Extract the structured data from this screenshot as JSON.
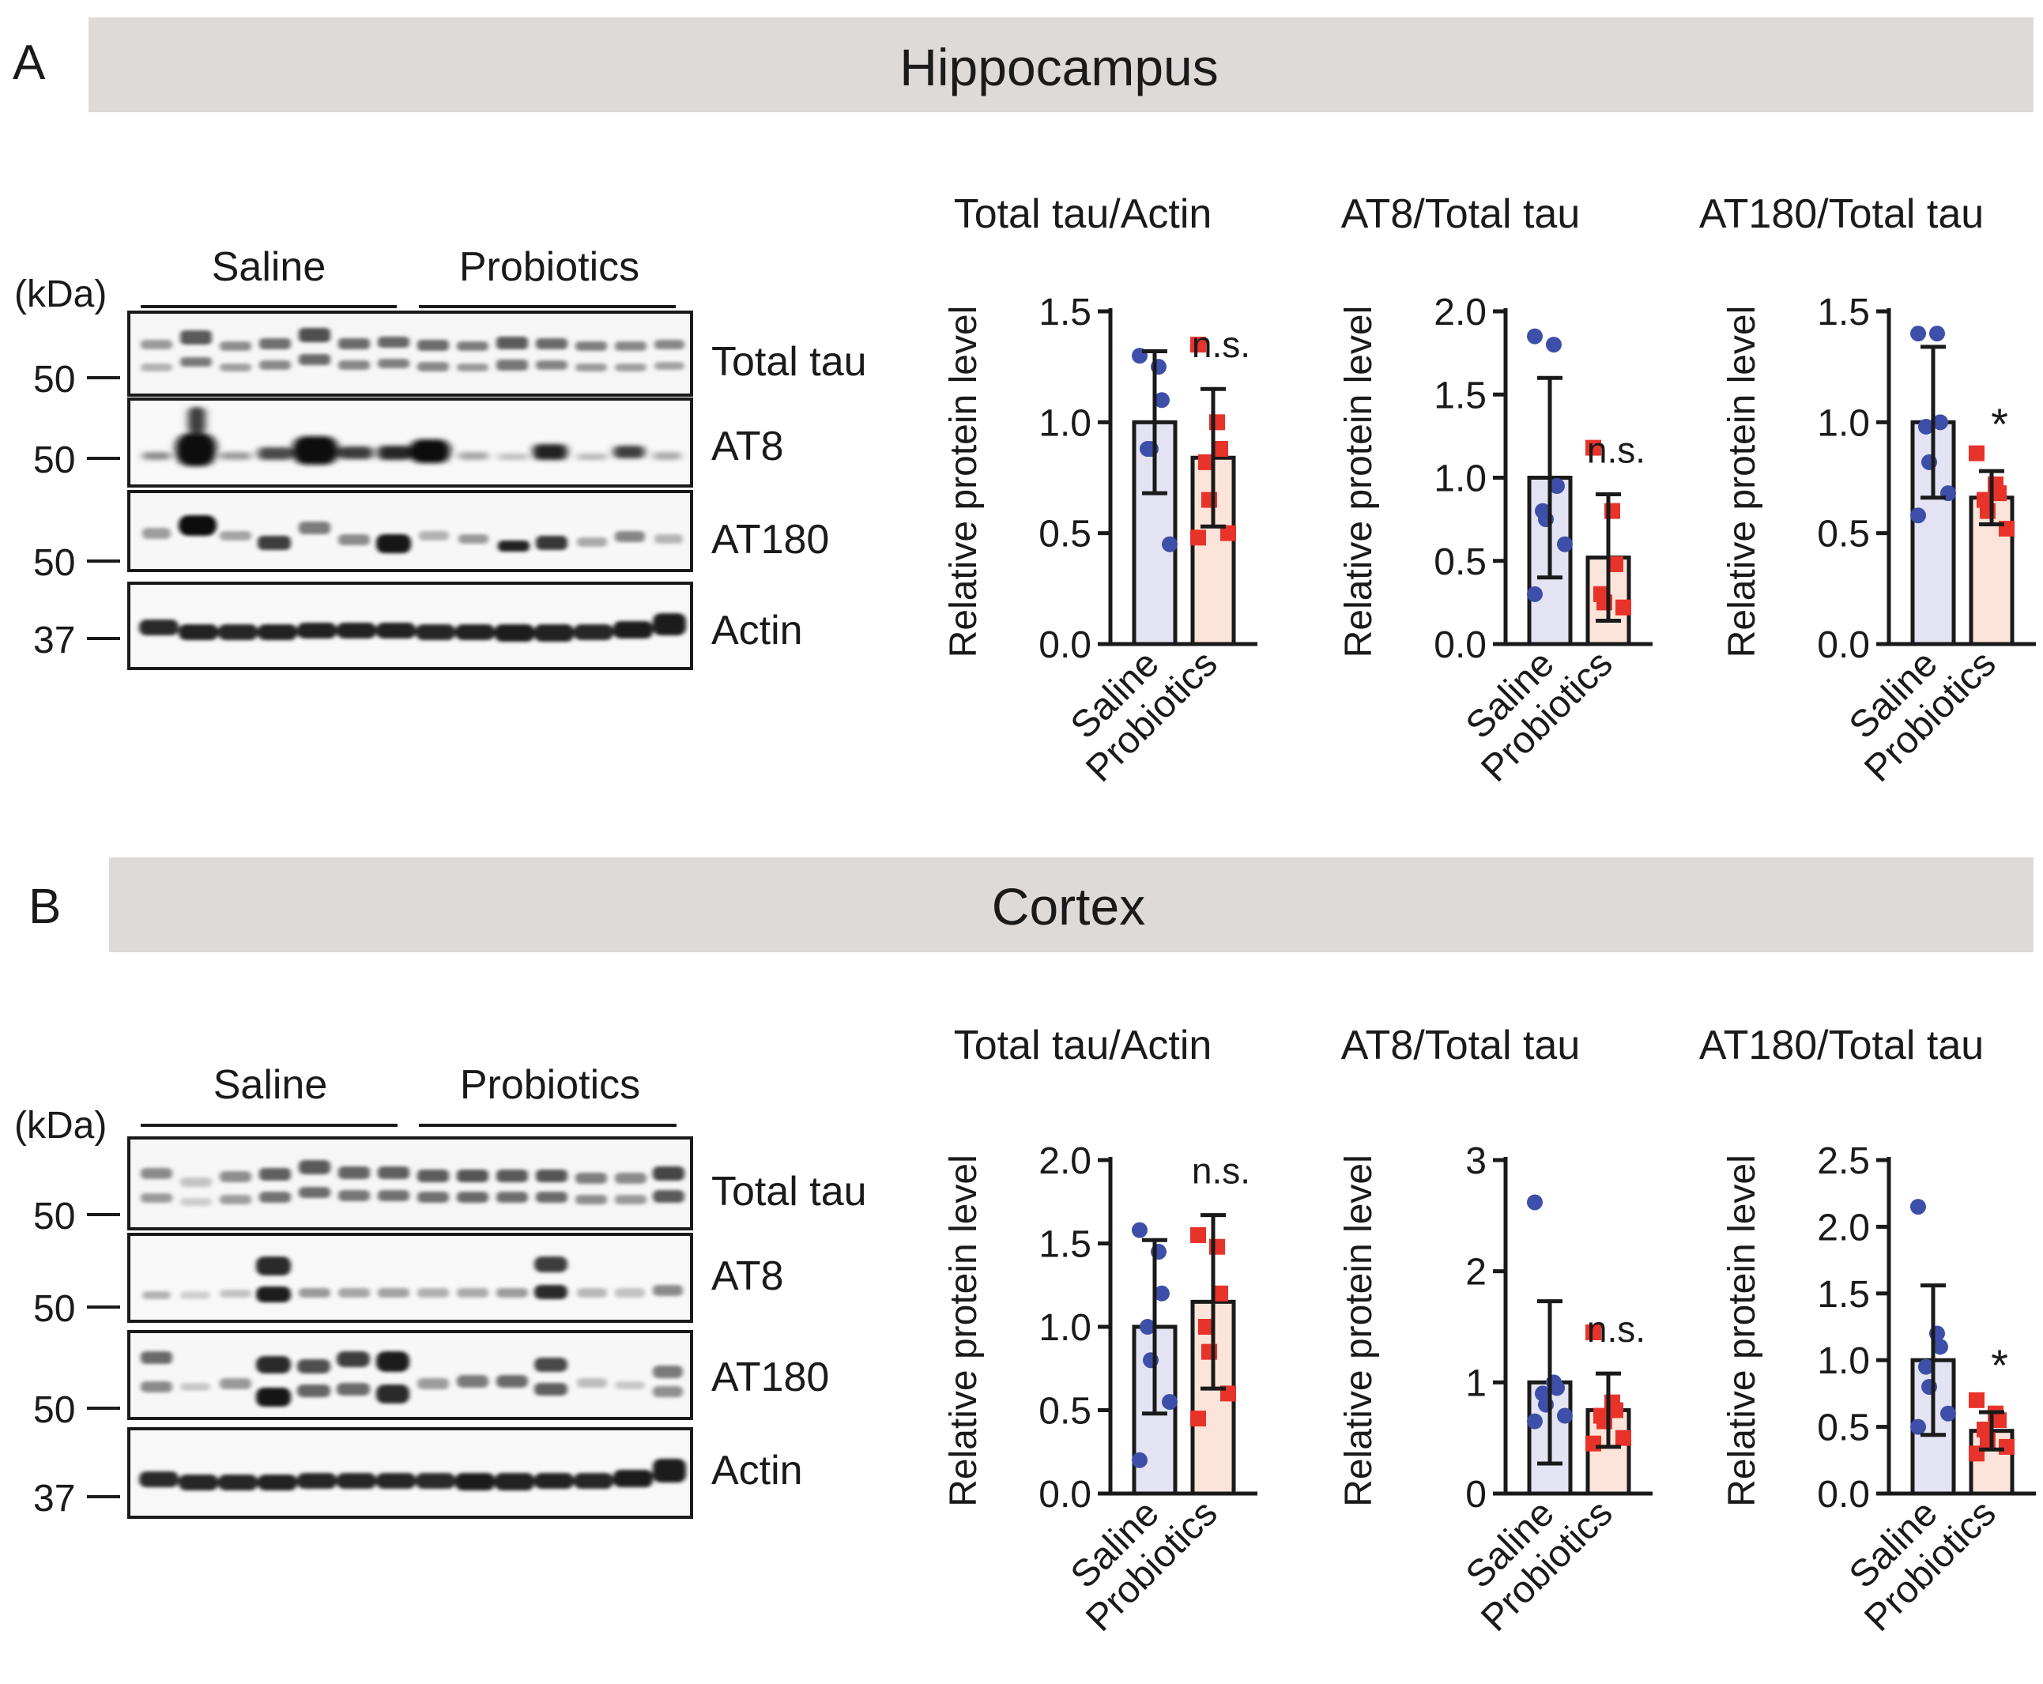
{
  "panels": [
    {
      "letter": "A",
      "region": "Hippocampus",
      "blot": {
        "groups": [
          "Saline",
          "Probiotics"
        ],
        "kda_label": "(kDa)",
        "rows": [
          {
            "name": "Total tau",
            "marker": "50"
          },
          {
            "name": "AT8",
            "marker": "50"
          },
          {
            "name": "AT180",
            "marker": "50"
          },
          {
            "name": "Actin",
            "marker": "37"
          }
        ]
      }
    },
    {
      "letter": "B",
      "region": "Cortex",
      "blot": {
        "groups": [
          "Saline",
          "Probiotics"
        ],
        "kda_label": "(kDa)",
        "rows": [
          {
            "name": "Total tau",
            "marker": "50"
          },
          {
            "name": "AT8",
            "marker": "50"
          },
          {
            "name": "AT180",
            "marker": "50"
          },
          {
            "name": "Actin",
            "marker": "37"
          }
        ]
      }
    }
  ],
  "colors": {
    "saline_point": "#3d4fa8",
    "probiotics_point": "#e8332a",
    "saline_bar": "#e4e3f3",
    "probiotics_bar": "#fde4da",
    "header_band": "#dedad7"
  },
  "chart_data": [
    {
      "type": "bar",
      "title": "Total tau/Actin",
      "ylabel": "Relative protein level",
      "categories": [
        "Saline",
        "Probiotics"
      ],
      "values": [
        1.0,
        0.84
      ],
      "errors": [
        0.32,
        0.31
      ],
      "ylim": [
        0,
        1.5
      ],
      "yticks": [
        "0.0",
        "0.5",
        "1.0",
        "1.5"
      ],
      "significance": "n.s.",
      "points": [
        [
          1.3,
          1.25,
          1.1,
          0.88,
          0.88,
          0.45
        ],
        [
          1.35,
          1.0,
          0.88,
          0.82,
          0.65,
          0.5,
          0.48
        ]
      ]
    },
    {
      "type": "bar",
      "title": "AT8/Total tau",
      "ylabel": "Relative protein level",
      "categories": [
        "Saline",
        "Probiotics"
      ],
      "values": [
        1.0,
        0.52
      ],
      "errors": [
        0.6,
        0.38
      ],
      "ylim": [
        0,
        2.0
      ],
      "yticks": [
        "0.0",
        "0.5",
        "1.0",
        "1.5",
        "2.0"
      ],
      "significance": "n.s.",
      "points": [
        [
          1.85,
          1.8,
          0.95,
          0.8,
          0.75,
          0.6,
          0.3
        ],
        [
          1.18,
          0.8,
          0.48,
          0.3,
          0.25,
          0.22
        ]
      ]
    },
    {
      "type": "bar",
      "title": "AT180/Total tau",
      "ylabel": "Relative protein level",
      "categories": [
        "Saline",
        "Probiotics"
      ],
      "values": [
        1.0,
        0.66
      ],
      "errors": [
        0.34,
        0.12
      ],
      "ylim": [
        0,
        1.5
      ],
      "yticks": [
        "0.0",
        "0.5",
        "1.0",
        "1.5"
      ],
      "significance": "*",
      "points": [
        [
          1.4,
          1.4,
          1.0,
          0.98,
          0.82,
          0.68,
          0.58
        ],
        [
          0.86,
          0.72,
          0.68,
          0.65,
          0.6,
          0.52
        ]
      ]
    },
    {
      "type": "bar",
      "title": "Total tau/Actin",
      "ylabel": "Relative protein level",
      "categories": [
        "Saline",
        "Probiotics"
      ],
      "values": [
        1.0,
        1.15
      ],
      "errors": [
        0.52,
        0.52
      ],
      "ylim": [
        0,
        2.0
      ],
      "yticks": [
        "0.0",
        "0.5",
        "1.0",
        "1.5",
        "2.0"
      ],
      "significance": "n.s.",
      "points": [
        [
          1.58,
          1.45,
          1.2,
          1.0,
          0.8,
          0.55,
          0.2
        ],
        [
          1.55,
          1.48,
          1.2,
          1.0,
          0.85,
          0.6,
          0.45
        ]
      ]
    },
    {
      "type": "bar",
      "title": "AT8/Total tau",
      "ylabel": "Relative protein level",
      "categories": [
        "Saline",
        "Probiotics"
      ],
      "values": [
        1.0,
        0.75
      ],
      "errors": [
        0.73,
        0.33
      ],
      "ylim": [
        0,
        3
      ],
      "yticks": [
        "0",
        "1",
        "2",
        "3"
      ],
      "significance": "n.s.",
      "points": [
        [
          2.62,
          1.0,
          0.95,
          0.9,
          0.8,
          0.7,
          0.65
        ],
        [
          1.45,
          0.82,
          0.75,
          0.7,
          0.65,
          0.5,
          0.45
        ]
      ]
    },
    {
      "type": "bar",
      "title": "AT180/Total tau",
      "ylabel": "Relative protein level",
      "categories": [
        "Saline",
        "Probiotics"
      ],
      "values": [
        1.0,
        0.47
      ],
      "errors": [
        0.56,
        0.14
      ],
      "ylim": [
        0,
        2.5
      ],
      "yticks": [
        "0.0",
        "0.5",
        "1.0",
        "1.5",
        "2.0",
        "2.5"
      ],
      "significance": "*",
      "points": [
        [
          2.15,
          1.2,
          1.1,
          0.95,
          0.8,
          0.6,
          0.5
        ],
        [
          0.7,
          0.6,
          0.55,
          0.48,
          0.4,
          0.35,
          0.3
        ]
      ]
    }
  ]
}
